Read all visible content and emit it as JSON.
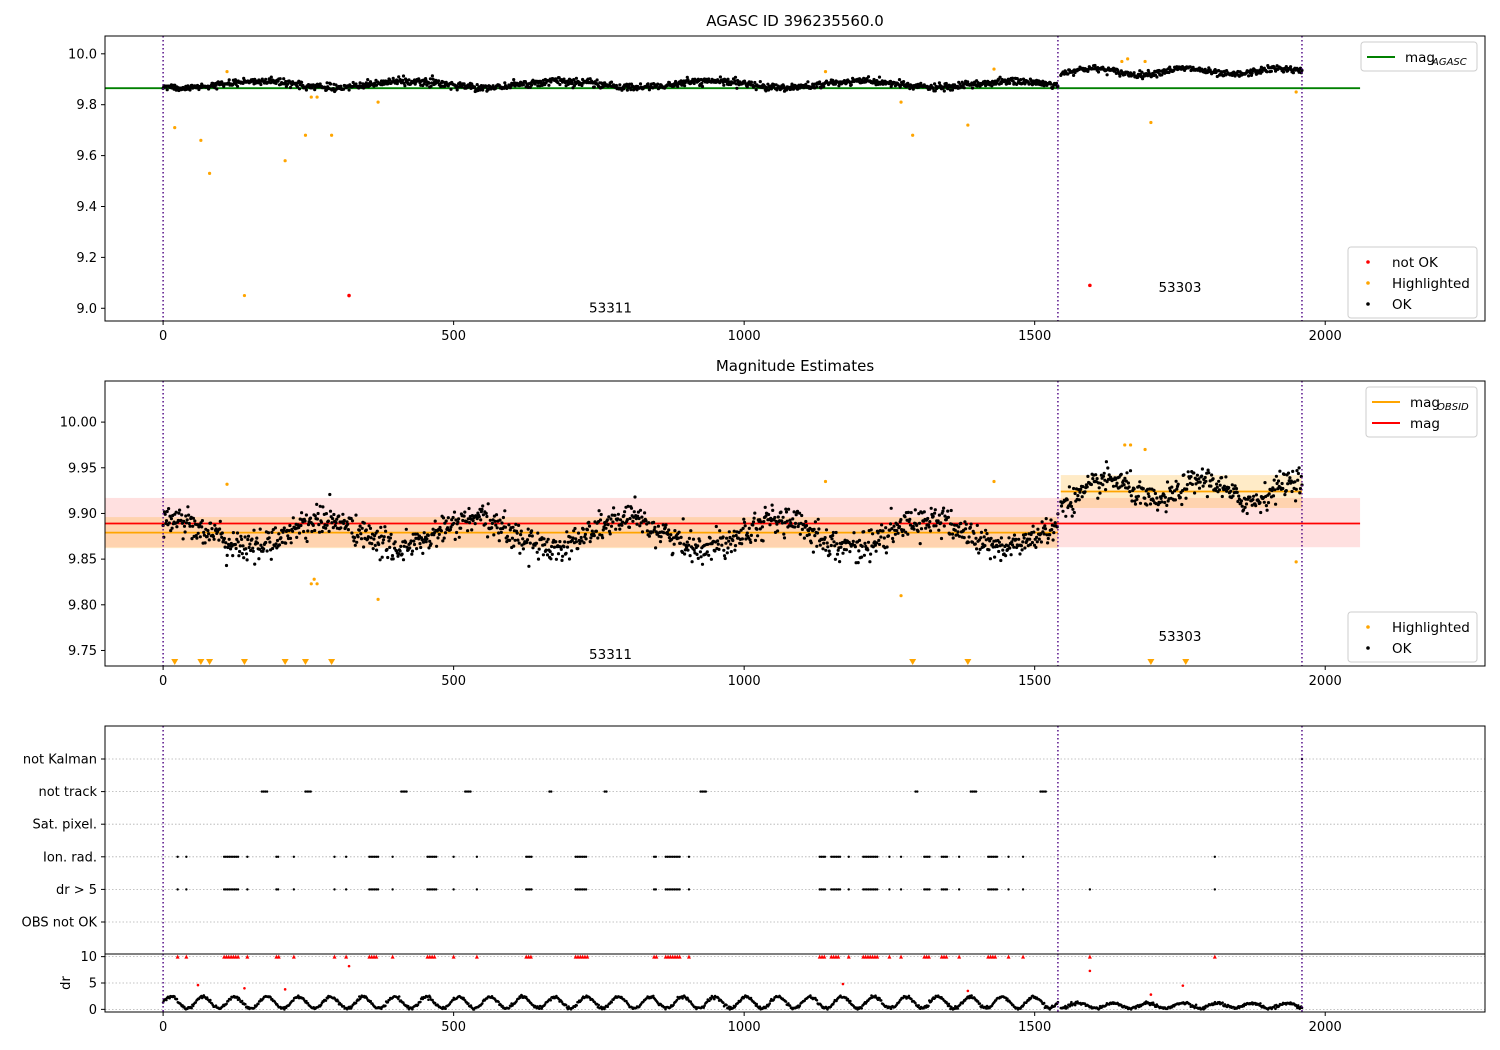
{
  "chart_data": [
    {
      "type": "scatter",
      "title": "AGASC ID 396235560.0",
      "xlim": [
        -100,
        2275
      ],
      "ylim": [
        8.95,
        10.07
      ],
      "xticks": [
        0,
        500,
        1000,
        1500,
        2000
      ],
      "yticks": [
        9.0,
        9.2,
        9.4,
        9.6,
        9.8,
        10.0
      ],
      "ytick_labels": [
        "9.0",
        "9.2",
        "9.4",
        "9.6",
        "9.8",
        "10.0"
      ],
      "obs_boundaries": [
        0,
        1540,
        1960
      ],
      "obs_labels": [
        {
          "text": "53311",
          "x": 770,
          "y": 9.0
        },
        {
          "text": "53303",
          "x": 1750,
          "y": 9.08
        }
      ],
      "lines": [
        {
          "name": "mag",
          "sub": "AGASC",
          "y": 9.865,
          "x_range": [
            -100,
            2060
          ],
          "color": "#008000"
        }
      ],
      "legend_top": [
        {
          "label": "mag",
          "sub": "AGASC",
          "color": "#008000",
          "kind": "line"
        }
      ],
      "legend_bottom": [
        {
          "label": "not OK",
          "color": "#ff0000",
          "kind": "point"
        },
        {
          "label": "Highlighted",
          "color": "#ffa500",
          "kind": "point"
        },
        {
          "label": "OK",
          "color": "#000000",
          "kind": "point"
        }
      ],
      "series": [
        {
          "name": "OK",
          "color": "#000000",
          "segments": [
            {
              "x0": 0,
              "x1": 1540,
              "n": 1300,
              "center": 9.88,
              "amp": 0.012,
              "period": 260,
              "noise": 0.014
            },
            {
              "x0": 1545,
              "x1": 1960,
              "n": 340,
              "center": 9.93,
              "amp": 0.012,
              "period": 160,
              "noise": 0.013
            }
          ]
        },
        {
          "name": "Highlighted",
          "color": "#ffa500",
          "points": [
            [
              20,
              9.71
            ],
            [
              65,
              9.66
            ],
            [
              80,
              9.53
            ],
            [
              110,
              9.93
            ],
            [
              140,
              9.05
            ],
            [
              210,
              9.58
            ],
            [
              245,
              9.68
            ],
            [
              255,
              9.83
            ],
            [
              265,
              9.83
            ],
            [
              290,
              9.68
            ],
            [
              370,
              9.81
            ],
            [
              1140,
              9.93
            ],
            [
              1270,
              9.81
            ],
            [
              1290,
              9.68
            ],
            [
              1385,
              9.72
            ],
            [
              1430,
              9.94
            ],
            [
              1650,
              9.97
            ],
            [
              1660,
              9.98
            ],
            [
              1690,
              9.97
            ],
            [
              1700,
              9.73
            ],
            [
              1950,
              9.85
            ]
          ]
        },
        {
          "name": "not OK",
          "color": "#ff0000",
          "points": [
            [
              320,
              9.05
            ],
            [
              1595,
              9.09
            ]
          ]
        }
      ]
    },
    {
      "type": "scatter",
      "title": "Magnitude Estimates",
      "xlim": [
        -100,
        2275
      ],
      "ylim": [
        9.733,
        10.045
      ],
      "xticks": [
        0,
        500,
        1000,
        1500,
        2000
      ],
      "yticks": [
        9.75,
        9.8,
        9.85,
        9.9,
        9.95,
        10.0
      ],
      "ytick_labels": [
        "9.75",
        "9.80",
        "9.85",
        "9.90",
        "9.95",
        "10.00"
      ],
      "obs_boundaries": [
        0,
        1540,
        1960
      ],
      "obs_labels": [
        {
          "text": "53311",
          "x": 770,
          "y": 9.745
        },
        {
          "text": "53303",
          "x": 1750,
          "y": 9.765
        }
      ],
      "bands": [
        {
          "x_range": [
            -100,
            2060
          ],
          "y_range": [
            9.863,
            9.917
          ],
          "color": "#ff0000",
          "opacity": 0.12
        },
        {
          "x_range": [
            -100,
            1540
          ],
          "y_range": [
            9.862,
            9.896
          ],
          "color": "#ffa500",
          "opacity": 0.22
        },
        {
          "x_range": [
            1545,
            1960
          ],
          "y_range": [
            9.906,
            9.942
          ],
          "color": "#ffa500",
          "opacity": 0.22
        }
      ],
      "lines": [
        {
          "name": "mag",
          "y": 9.889,
          "x_range": [
            -100,
            2060
          ],
          "color": "#ff0000"
        },
        {
          "name": "mag",
          "sub": "OBSID",
          "y": 9.879,
          "x_range": [
            -100,
            1540
          ],
          "color": "#ffa500"
        },
        {
          "name": "mag",
          "sub": "OBSID",
          "y": 9.924,
          "x_range": [
            1545,
            1960
          ],
          "color": "#ffa500"
        }
      ],
      "legend_top": [
        {
          "label": "mag",
          "sub": "OBSID",
          "color": "#ffa500",
          "kind": "line"
        },
        {
          "label": "mag",
          "color": "#ff0000",
          "kind": "line"
        }
      ],
      "legend_bottom": [
        {
          "label": "Highlighted",
          "color": "#ffa500",
          "kind": "point"
        },
        {
          "label": "OK",
          "color": "#000000",
          "kind": "point"
        }
      ],
      "series": [
        {
          "name": "OK",
          "color": "#000000",
          "segments": [
            {
              "x0": 0,
              "x1": 1540,
              "n": 1300,
              "center": 9.878,
              "amp": 0.015,
              "period": 260,
              "noise": 0.016
            },
            {
              "x0": 1545,
              "x1": 1960,
              "n": 340,
              "center": 9.925,
              "amp": 0.012,
              "period": 160,
              "noise": 0.014
            }
          ]
        },
        {
          "name": "Highlighted",
          "color": "#ffa500",
          "points": [
            [
              110,
              9.932
            ],
            [
              255,
              9.823
            ],
            [
              265,
              9.823
            ],
            [
              260,
              9.828
            ],
            [
              370,
              9.806
            ],
            [
              1140,
              9.935
            ],
            [
              1270,
              9.81
            ],
            [
              1430,
              9.935
            ],
            [
              1655,
              9.975
            ],
            [
              1665,
              9.975
            ],
            [
              1690,
              9.97
            ],
            [
              1950,
              9.847
            ]
          ]
        },
        {
          "name": "Highlighted (off-scale)",
          "color": "#ffa500",
          "marker": "triangle-down",
          "points": [
            [
              20,
              9.735
            ],
            [
              65,
              9.735
            ],
            [
              80,
              9.735
            ],
            [
              140,
              9.735
            ],
            [
              210,
              9.735
            ],
            [
              245,
              9.735
            ],
            [
              290,
              9.735
            ],
            [
              1290,
              9.735
            ],
            [
              1385,
              9.735
            ],
            [
              1700,
              9.735
            ],
            [
              1760,
              9.735
            ]
          ]
        }
      ]
    },
    {
      "type": "scatter",
      "title": "",
      "xlim": [
        -100,
        2275
      ],
      "flag_rows": [
        "OBS not OK",
        "dr > 5",
        "Ion. rad.",
        "Sat. pixel.",
        "not track",
        "not Kalman"
      ],
      "obs_boundaries": [
        0,
        1540,
        1960
      ],
      "flags": {
        "not track": [
          [
            170,
            180
          ],
          [
            245,
            255
          ],
          [
            410,
            420
          ],
          [
            520,
            530
          ],
          [
            665,
            670
          ],
          [
            760,
            765
          ],
          [
            925,
            935
          ],
          [
            1295,
            1300
          ],
          [
            1390,
            1400
          ],
          [
            1510,
            1520
          ]
        ],
        "Ion. rad.": [
          [
            25,
            25
          ],
          [
            40,
            40
          ],
          [
            105,
            130
          ],
          [
            145,
            145
          ],
          [
            195,
            200
          ],
          [
            225,
            225
          ],
          [
            295,
            295
          ],
          [
            315,
            315
          ],
          [
            355,
            370
          ],
          [
            395,
            395
          ],
          [
            455,
            470
          ],
          [
            500,
            500
          ],
          [
            540,
            540
          ],
          [
            625,
            635
          ],
          [
            710,
            730
          ],
          [
            845,
            850
          ],
          [
            865,
            890
          ],
          [
            905,
            905
          ],
          [
            1130,
            1140
          ],
          [
            1150,
            1165
          ],
          [
            1180,
            1180
          ],
          [
            1205,
            1230
          ],
          [
            1250,
            1250
          ],
          [
            1270,
            1270
          ],
          [
            1310,
            1320
          ],
          [
            1340,
            1350
          ],
          [
            1370,
            1370
          ],
          [
            1420,
            1435
          ],
          [
            1455,
            1455
          ],
          [
            1480,
            1480
          ],
          [
            1810,
            1810
          ]
        ],
        "dr > 5": [
          [
            25,
            25
          ],
          [
            40,
            40
          ],
          [
            105,
            130
          ],
          [
            145,
            145
          ],
          [
            195,
            200
          ],
          [
            225,
            225
          ],
          [
            295,
            295
          ],
          [
            315,
            315
          ],
          [
            355,
            370
          ],
          [
            395,
            395
          ],
          [
            455,
            470
          ],
          [
            500,
            500
          ],
          [
            540,
            540
          ],
          [
            625,
            635
          ],
          [
            710,
            730
          ],
          [
            845,
            850
          ],
          [
            865,
            890
          ],
          [
            905,
            905
          ],
          [
            1130,
            1140
          ],
          [
            1150,
            1165
          ],
          [
            1180,
            1180
          ],
          [
            1205,
            1230
          ],
          [
            1250,
            1250
          ],
          [
            1270,
            1270
          ],
          [
            1310,
            1320
          ],
          [
            1340,
            1350
          ],
          [
            1370,
            1370
          ],
          [
            1420,
            1435
          ],
          [
            1455,
            1455
          ],
          [
            1480,
            1480
          ],
          [
            1595,
            1595
          ],
          [
            1810,
            1810
          ]
        ],
        "not Kalman": [
          [
            1960,
            1960
          ]
        ]
      }
    },
    {
      "type": "scatter",
      "title": "",
      "ylabel": "dr",
      "xlim": [
        -100,
        2275
      ],
      "ylim": [
        -0.5,
        10.5
      ],
      "xticks": [
        0,
        500,
        1000,
        1500,
        2000
      ],
      "yticks": [
        0,
        5,
        10
      ],
      "ytick_labels": [
        "0",
        "5",
        "10"
      ],
      "obs_boundaries": [
        0,
        1540,
        1960
      ],
      "series": [
        {
          "name": "dr",
          "color": "#000000",
          "segments": [
            {
              "x0": 0,
              "x1": 1540,
              "n": 1100,
              "min": 0.2,
              "max": 2.4,
              "period": 55
            },
            {
              "x0": 1545,
              "x1": 1960,
              "n": 320,
              "min": 0.2,
              "max": 1.2,
              "period": 60
            }
          ]
        },
        {
          "name": "dr > 5 (clipped)",
          "color": "#ff0000",
          "marker": "triangle-up",
          "points_from_flag": "dr > 5",
          "y": 10
        },
        {
          "name": "dr outliers",
          "color": "#ff0000",
          "points": [
            [
              60,
              4.6
            ],
            [
              140,
              4.0
            ],
            [
              210,
              3.8
            ],
            [
              320,
              8.2
            ],
            [
              1170,
              4.8
            ],
            [
              1385,
              3.5
            ],
            [
              1595,
              7.3
            ],
            [
              1700,
              2.8
            ],
            [
              1755,
              4.5
            ]
          ]
        }
      ]
    }
  ]
}
